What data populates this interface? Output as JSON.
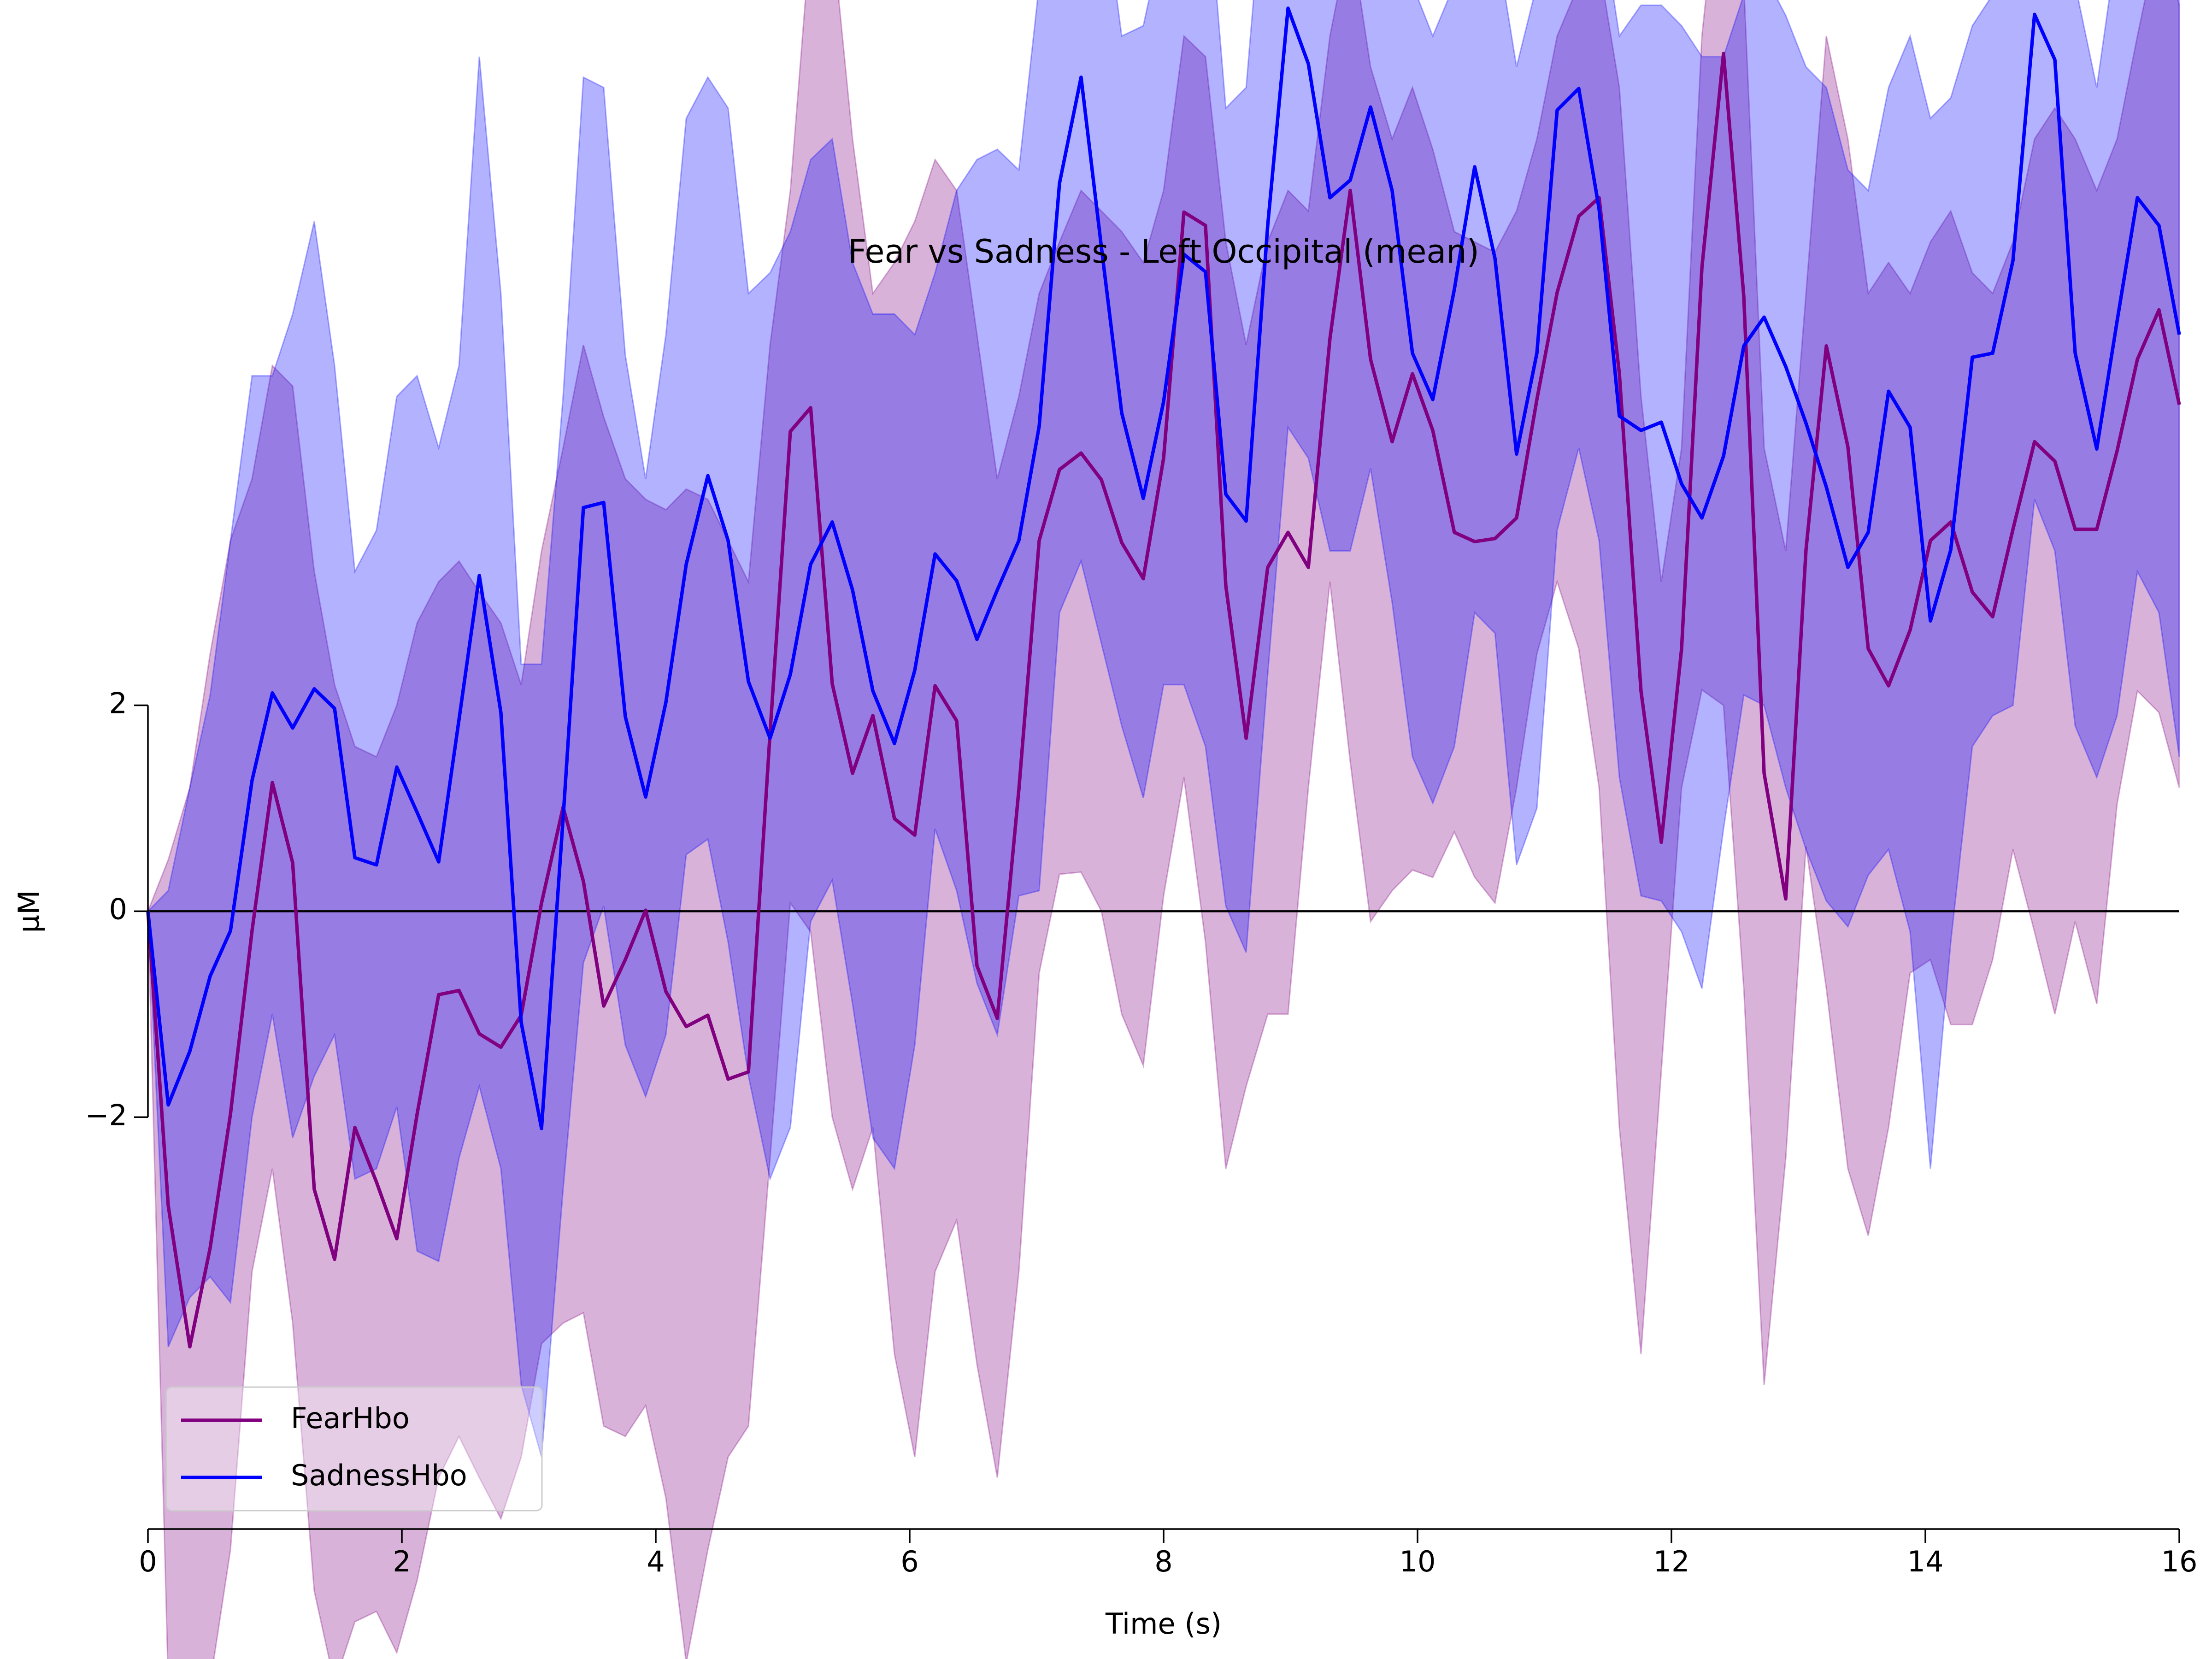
{
  "chart_data": {
    "type": "line_band",
    "title": "Fear vs Sadness - Left Occipital (mean)",
    "xlabel": "Time (s)",
    "ylabel": "μM",
    "x": [
      0.0,
      0.16,
      0.33,
      0.49,
      0.65,
      0.82,
      0.98,
      1.14,
      1.31,
      1.47,
      1.63,
      1.8,
      1.96,
      2.12,
      2.29,
      2.45,
      2.61,
      2.78,
      2.94,
      3.1,
      3.27,
      3.43,
      3.59,
      3.76,
      3.92,
      4.08,
      4.24,
      4.41,
      4.57,
      4.73,
      4.9,
      5.06,
      5.22,
      5.39,
      5.55,
      5.71,
      5.88,
      6.04,
      6.2,
      6.37,
      6.53,
      6.69,
      6.86,
      7.02,
      7.18,
      7.35,
      7.51,
      7.67,
      7.84,
      8.0,
      8.16,
      8.33,
      8.49,
      8.65,
      8.82,
      8.98,
      9.14,
      9.31,
      9.47,
      9.63,
      9.8,
      9.96,
      10.12,
      10.29,
      10.45,
      10.61,
      10.78,
      10.94,
      11.1,
      11.27,
      11.43,
      11.59,
      11.76,
      11.92,
      12.08,
      12.24,
      12.41,
      12.57,
      12.73,
      12.9,
      13.06,
      13.22,
      13.39,
      13.55,
      13.71,
      13.88,
      14.04,
      14.2,
      14.37,
      14.53,
      14.69,
      14.86,
      15.02,
      15.18,
      15.35,
      15.51,
      15.67,
      15.84,
      16.0
    ],
    "series": [
      {
        "name": "FearHbo",
        "color": "#800080",
        "values": [
          0,
          -2.86,
          -4.23,
          -3.27,
          -1.97,
          -0.19,
          1.25,
          0.47,
          -2.7,
          -3.38,
          -2.1,
          -2.63,
          -3.18,
          -1.97,
          -0.81,
          -0.77,
          -1.19,
          -1.32,
          -1.01,
          0.08,
          1.01,
          0.29,
          -0.92,
          -0.47,
          0.01,
          -0.78,
          -1.12,
          -1.01,
          -1.63,
          -1.56,
          1.73,
          4.66,
          4.89,
          2.21,
          1.34,
          1.9,
          0.9,
          0.74,
          2.19,
          1.85,
          -0.53,
          -1.04,
          1.18,
          3.6,
          4.29,
          4.45,
          4.19,
          3.58,
          3.23,
          4.4,
          6.79,
          6.66,
          3.16,
          1.68,
          3.34,
          3.68,
          3.34,
          5.56,
          7.0,
          5.36,
          4.56,
          5.22,
          4.67,
          3.68,
          3.59,
          3.62,
          3.82,
          4.97,
          6.01,
          6.75,
          6.93,
          5.22,
          2.14,
          0.67,
          2.55,
          6.25,
          8.33,
          5.97,
          1.34,
          0.12,
          3.51,
          5.49,
          4.51,
          2.55,
          2.19,
          2.73,
          3.6,
          3.78,
          3.1,
          2.86,
          3.71,
          4.56,
          4.37,
          3.71,
          3.71,
          4.47,
          5.36,
          5.84,
          4.92
        ],
        "lower": [
          0,
          -7.5,
          -8,
          -7.5,
          -6.2,
          -3.5,
          -2.5,
          -4.0,
          -6.6,
          -7.5,
          -6.9,
          -6.8,
          -7.2,
          -6.5,
          -5.5,
          -5.1,
          -5.5,
          -5.9,
          -5.3,
          -4.2,
          -4.0,
          -3.9,
          -5.0,
          -5.1,
          -4.8,
          -5.7,
          -7.3,
          -6.2,
          -5.3,
          -5.0,
          -2.4,
          0.08,
          -0.2,
          -2.0,
          -2.7,
          -2.1,
          -4.3,
          -5.3,
          -3.5,
          -3.0,
          -4.4,
          -5.5,
          -3.5,
          -0.6,
          0.36,
          0.38,
          0.0,
          -1.0,
          -1.5,
          0.15,
          1.3,
          -0.3,
          -2.5,
          -1.7,
          -1.0,
          -1.0,
          1.2,
          3.2,
          1.45,
          -0.1,
          0.2,
          0.4,
          0.33,
          0.77,
          0.33,
          0.08,
          1.2,
          2.5,
          3.2,
          2.55,
          1.2,
          -2.1,
          -4.3,
          -1.55,
          1.2,
          2.15,
          2.0,
          -0.75,
          -4.6,
          -2.4,
          0.63,
          -0.75,
          -2.5,
          -3.15,
          -2.1,
          -0.6,
          -0.47,
          -1.1,
          -1.1,
          -0.47,
          0.6,
          -0.2,
          -1.0,
          -0.1,
          -0.9,
          1.04,
          2.14,
          1.93,
          1.2
        ],
        "upper": [
          0,
          0.5,
          1.2,
          2.5,
          3.6,
          4.2,
          5.3,
          5.1,
          3.3,
          2.2,
          1.6,
          1.5,
          2.0,
          2.8,
          3.2,
          3.4,
          3.1,
          2.8,
          2.2,
          3.5,
          4.5,
          5.5,
          4.8,
          4.2,
          4.0,
          3.9,
          4.1,
          4.0,
          3.6,
          3.2,
          5.5,
          7.0,
          9.5,
          9.5,
          7.5,
          6.0,
          6.3,
          6.7,
          7.3,
          7.0,
          5.6,
          4.2,
          5.0,
          6.0,
          6.5,
          7.0,
          6.8,
          6.6,
          6.3,
          7.0,
          8.5,
          8.3,
          6.5,
          5.5,
          6.5,
          7.0,
          6.8,
          8.5,
          9.5,
          8.2,
          7.5,
          8.0,
          7.4,
          6.6,
          6.5,
          6.4,
          6.8,
          7.5,
          8.5,
          9.0,
          9.2,
          8.0,
          5.0,
          3.2,
          4.5,
          8.5,
          10.5,
          9.0,
          4.5,
          3.5,
          6.0,
          8.5,
          7.5,
          6.0,
          6.3,
          6.0,
          6.5,
          6.8,
          6.2,
          6.0,
          6.5,
          7.5,
          7.8,
          7.5,
          7.0,
          7.5,
          8.5,
          9.5,
          8.8
        ]
      },
      {
        "name": "SadnessHbo",
        "color": "#0000ff",
        "values": [
          0,
          -1.88,
          -1.36,
          -0.63,
          -0.19,
          1.27,
          2.12,
          1.78,
          2.16,
          1.97,
          0.52,
          0.45,
          1.4,
          0.96,
          0.48,
          1.86,
          3.26,
          1.93,
          -1.08,
          -2.11,
          0.9,
          3.92,
          3.97,
          1.89,
          1.11,
          2.03,
          3.37,
          4.23,
          3.6,
          2.23,
          1.68,
          2.3,
          3.37,
          3.78,
          3.12,
          2.14,
          1.63,
          2.34,
          3.47,
          3.21,
          2.64,
          3.12,
          3.6,
          4.71,
          7.07,
          8.1,
          6.45,
          4.84,
          4.01,
          4.95,
          6.38,
          6.21,
          4.05,
          3.79,
          6.66,
          8.77,
          8.23,
          6.93,
          7.1,
          7.81,
          7.0,
          5.42,
          4.97,
          6.04,
          7.23,
          6.34,
          4.44,
          5.42,
          7.78,
          7.99,
          6.82,
          4.81,
          4.67,
          4.75,
          4.15,
          3.82,
          4.42,
          5.49,
          5.77,
          5.29,
          4.74,
          4.12,
          3.34,
          3.68,
          5.05,
          4.7,
          2.82,
          3.51,
          5.38,
          5.42,
          6.32,
          8.71,
          8.27,
          5.42,
          4.49,
          5.73,
          6.93,
          6.66,
          5.6
        ],
        "lower": [
          0,
          -4.23,
          -3.75,
          -3.55,
          -3.8,
          -2.0,
          -1.0,
          -2.2,
          -1.6,
          -1.2,
          -2.6,
          -2.5,
          -1.9,
          -3.3,
          -3.4,
          -2.4,
          -1.7,
          -2.5,
          -4.6,
          -5.3,
          -2.7,
          -0.5,
          0.05,
          -1.3,
          -1.8,
          -1.2,
          0.55,
          0.7,
          -0.3,
          -1.6,
          -2.6,
          -2.1,
          -0.1,
          0.3,
          -0.9,
          -2.2,
          -2.5,
          -1.3,
          0.8,
          0.2,
          -0.7,
          -1.2,
          0.15,
          0.2,
          2.9,
          3.4,
          2.6,
          1.8,
          1.1,
          2.2,
          2.2,
          1.6,
          0.05,
          -0.4,
          2.3,
          4.7,
          4.4,
          3.5,
          3.5,
          4.3,
          3.0,
          1.5,
          1.05,
          1.6,
          2.9,
          2.7,
          0.45,
          1.0,
          3.7,
          4.5,
          3.6,
          1.3,
          0.15,
          0.1,
          -0.2,
          -0.75,
          0.8,
          2.1,
          2.0,
          1.2,
          0.6,
          0.1,
          -0.15,
          0.35,
          0.6,
          -0.2,
          -2.5,
          -0.3,
          1.6,
          1.9,
          2.0,
          4.0,
          3.5,
          1.8,
          1.3,
          1.9,
          3.3,
          2.9,
          1.5
        ],
        "upper": [
          0,
          0.2,
          1.2,
          2.1,
          3.6,
          5.2,
          5.2,
          5.8,
          6.7,
          5.3,
          3.3,
          3.7,
          5.0,
          5.2,
          4.5,
          5.3,
          8.3,
          6.0,
          2.4,
          2.4,
          5.0,
          8.1,
          8.0,
          5.4,
          4.2,
          5.6,
          7.7,
          8.1,
          7.8,
          6.0,
          6.2,
          6.6,
          7.3,
          7.5,
          6.3,
          5.8,
          5.8,
          5.6,
          6.2,
          7.0,
          7.3,
          7.4,
          7.2,
          9.0,
          11,
          13,
          10,
          8.5,
          8.6,
          9.5,
          10.0,
          10.2,
          7.8,
          8.0,
          10.5,
          12,
          12,
          10,
          10.5,
          11,
          10.5,
          9.0,
          8.5,
          9.0,
          10.0,
          9.5,
          8.2,
          9.0,
          11,
          11,
          9.8,
          8.5,
          8.8,
          8.8,
          8.6,
          8.3,
          8.3,
          8.9,
          9.1,
          8.7,
          8.2,
          8.0,
          7.2,
          7.0,
          8.0,
          8.5,
          7.7,
          7.9,
          8.6,
          8.9,
          9.0,
          11,
          11,
          9.0,
          8.0,
          9.4,
          10.5,
          10.3,
          9.5
        ]
      }
    ],
    "band_opacity": 0.3,
    "axhline": 0,
    "xlim": [
      0,
      16
    ],
    "xticks": [
      0,
      2,
      4,
      6,
      8,
      10,
      12,
      14,
      16
    ],
    "ylim": [
      -6,
      8.85
    ],
    "yticks": [
      {
        "value": -2,
        "label": "−2"
      },
      0,
      2
    ],
    "legend": "lower left"
  }
}
